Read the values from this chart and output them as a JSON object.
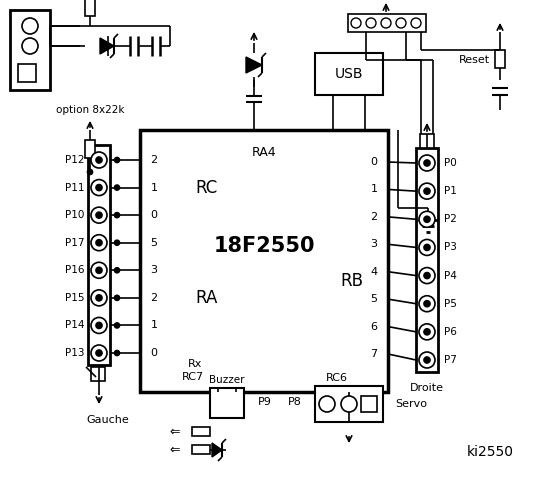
{
  "bg_color": "#ffffff",
  "title": "ki2550",
  "chip_label": "18F2550",
  "chip_sublabel": "RA4",
  "rc_label": "RC",
  "ra_label": "RA",
  "rb_label": "RB",
  "left_pins_labels": [
    "P12",
    "P11",
    "P10",
    "P17",
    "P16",
    "P15",
    "P14",
    "P13"
  ],
  "rc_nums": [
    "2",
    "1",
    "0"
  ],
  "ra_nums": [
    "5",
    "3",
    "2",
    "1",
    "0"
  ],
  "right_pins_labels": [
    "P0",
    "P1",
    "P2",
    "P3",
    "P4",
    "P5",
    "P6",
    "P7"
  ],
  "rb_nums": [
    "0",
    "1",
    "2",
    "3",
    "4",
    "5",
    "6",
    "7"
  ],
  "gauche_label": "Gauche",
  "droite_label": "Droite",
  "reset_label": "Reset",
  "usb_label": "USB",
  "option_label": "option 8x22k",
  "buzzer_label": "Buzzer",
  "p9_label": "P9",
  "p8_label": "P8",
  "servo_label": "Servo",
  "rx_label": "Rx",
  "rc7_label": "RC7",
  "rc6_label": "RC6",
  "line_color": "#000000"
}
